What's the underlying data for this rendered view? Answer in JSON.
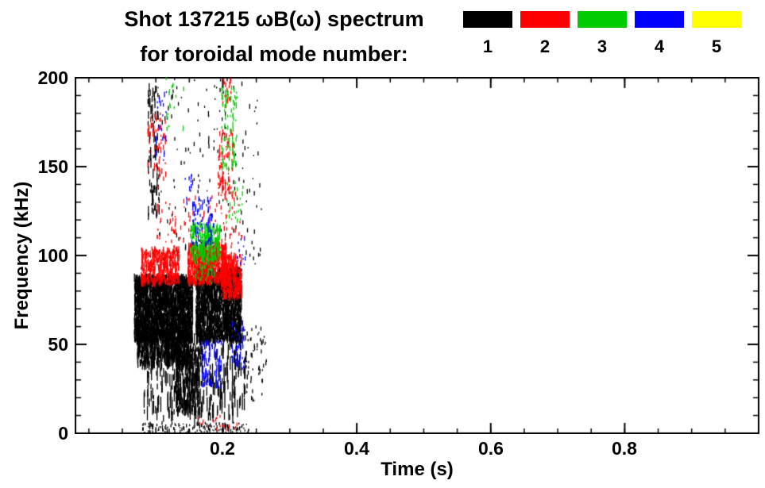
{
  "title": {
    "line1": "Shot 137215 ωB(ω) spectrum",
    "line2": "for toroidal mode number:"
  },
  "legend": {
    "items": [
      {
        "label": "1",
        "color": "#000000"
      },
      {
        "label": "2",
        "color": "#ff0000"
      },
      {
        "label": "3",
        "color": "#00cc00"
      },
      {
        "label": "4",
        "color": "#0000ff"
      },
      {
        "label": "5",
        "color": "#ffff00"
      }
    ]
  },
  "chart_data": {
    "type": "scatter",
    "title": "Shot 137215 ωB(ω) spectrum for toroidal mode number 1-5",
    "xlabel": "Time (s)",
    "ylabel": "Frequency (kHz)",
    "xlim": [
      -0.02,
      1.0
    ],
    "ylim": [
      0,
      200
    ],
    "x_minor_step": 0.05,
    "y_minor_step": 10,
    "xticks": [
      {
        "t": 0.2,
        "label": "0.2"
      },
      {
        "t": 0.4,
        "label": "0.4"
      },
      {
        "t": 0.6,
        "label": "0.6"
      },
      {
        "t": 0.8,
        "label": "0.8"
      }
    ],
    "yticks": [
      {
        "f": 0,
        "label": "0"
      },
      {
        "f": 50,
        "label": "50"
      },
      {
        "f": 100,
        "label": "100"
      },
      {
        "f": 150,
        "label": "150"
      },
      {
        "f": 200,
        "label": "200"
      }
    ],
    "series": [
      {
        "name": "n=1",
        "color": "#000000",
        "clusters": [
          {
            "t": [
              0.068,
              0.155
            ],
            "f": [
              52,
              88
            ],
            "n": 2200,
            "h": 7
          },
          {
            "t": [
              0.072,
              0.15
            ],
            "f": [
              38,
              58
            ],
            "n": 500,
            "h": 9
          },
          {
            "t": [
              0.16,
              0.228
            ],
            "f": [
              52,
              92
            ],
            "n": 1600,
            "h": 7
          },
          {
            "t": [
              0.08,
              0.235
            ],
            "f": [
              8,
              55
            ],
            "n": 320,
            "h": 14
          },
          {
            "t": [
              0.13,
              0.165
            ],
            "f": [
              12,
              48
            ],
            "n": 260,
            "h": 10
          },
          {
            "t": [
              0.08,
              0.24
            ],
            "f": [
              0,
              6
            ],
            "n": 140,
            "h": 3
          },
          {
            "t": [
              0.088,
              0.105
            ],
            "f": [
              120,
              198
            ],
            "n": 90,
            "h": 8
          },
          {
            "t": [
              0.1,
              0.26
            ],
            "f": [
              95,
              200
            ],
            "n": 160,
            "h": 4
          },
          {
            "t": [
              0.23,
              0.265
            ],
            "f": [
              18,
              60
            ],
            "n": 60,
            "h": 4
          }
        ]
      },
      {
        "name": "n=2",
        "color": "#ff0000",
        "clusters": [
          {
            "t": [
              0.078,
              0.135
            ],
            "f": [
              84,
              104
            ],
            "n": 420,
            "h": 6
          },
          {
            "t": [
              0.148,
              0.205
            ],
            "f": [
              84,
              106
            ],
            "n": 650,
            "h": 6
          },
          {
            "t": [
              0.198,
              0.228
            ],
            "f": [
              76,
              100
            ],
            "n": 300,
            "h": 6
          },
          {
            "t": [
              0.088,
              0.115
            ],
            "f": [
              138,
              180
            ],
            "n": 60,
            "h": 5
          },
          {
            "t": [
              0.193,
              0.215
            ],
            "f": [
              132,
              170
            ],
            "n": 90,
            "h": 5
          },
          {
            "t": [
              0.2,
              0.213
            ],
            "f": [
              182,
              200
            ],
            "n": 25,
            "h": 4
          },
          {
            "t": [
              0.135,
              0.23
            ],
            "f": [
              104,
              136
            ],
            "n": 70,
            "h": 4
          },
          {
            "t": [
              0.1,
              0.13
            ],
            "f": [
              105,
              130
            ],
            "n": 30,
            "h": 4
          },
          {
            "t": [
              0.16,
              0.235
            ],
            "f": [
              2,
              10
            ],
            "n": 20,
            "h": 3
          }
        ]
      },
      {
        "name": "n=3",
        "color": "#00cc00",
        "clusters": [
          {
            "t": [
              0.152,
              0.196
            ],
            "f": [
              97,
              118
            ],
            "n": 260,
            "h": 6
          },
          {
            "t": [
              0.198,
              0.222
            ],
            "f": [
              148,
              196
            ],
            "n": 80,
            "h": 5
          },
          {
            "t": [
              0.158,
              0.188
            ],
            "f": [
              84,
              96
            ],
            "n": 40,
            "h": 4
          },
          {
            "t": [
              0.205,
              0.23
            ],
            "f": [
              118,
              142
            ],
            "n": 25,
            "h": 4
          },
          {
            "t": [
              0.115,
              0.145
            ],
            "f": [
              170,
              200
            ],
            "n": 20,
            "h": 4
          }
        ]
      },
      {
        "name": "n=4",
        "color": "#0000ff",
        "clusters": [
          {
            "t": [
              0.153,
              0.186
            ],
            "f": [
              106,
              132
            ],
            "n": 70,
            "h": 5
          },
          {
            "t": [
              0.168,
              0.198
            ],
            "f": [
              26,
              52
            ],
            "n": 90,
            "h": 6
          },
          {
            "t": [
              0.213,
              0.232
            ],
            "f": [
              36,
              62
            ],
            "n": 45,
            "h": 5
          },
          {
            "t": [
              0.1,
              0.118
            ],
            "f": [
              148,
              192
            ],
            "n": 22,
            "h": 5
          },
          {
            "t": [
              0.143,
              0.158
            ],
            "f": [
              128,
              146
            ],
            "n": 15,
            "h": 4
          },
          {
            "t": [
              0.22,
              0.235
            ],
            "f": [
              95,
              110
            ],
            "n": 12,
            "h": 4
          }
        ]
      },
      {
        "name": "n=5",
        "color": "#ffff00",
        "clusters": []
      }
    ]
  }
}
